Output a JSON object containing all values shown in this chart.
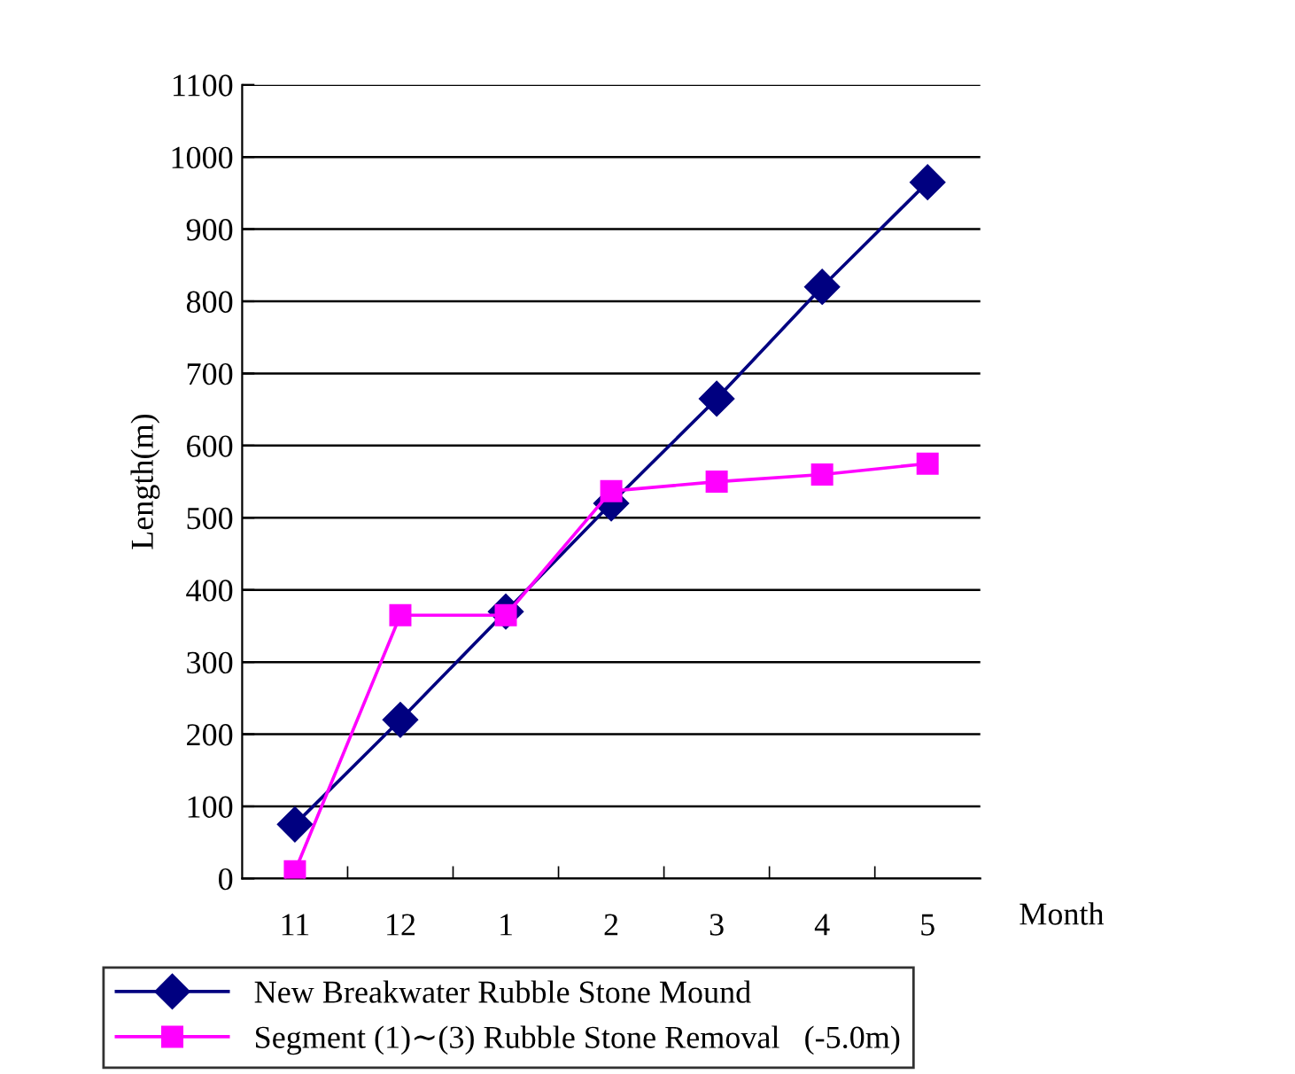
{
  "chart_data": {
    "type": "line",
    "xlabel": "Month",
    "ylabel": "Length(m)",
    "categories": [
      "11",
      "12",
      "1",
      "2",
      "3",
      "4",
      "5"
    ],
    "series": [
      {
        "name": "New Breakwater Rubble Stone Mound",
        "color": "#000080",
        "marker": "diamond",
        "values": [
          75,
          220,
          370,
          520,
          665,
          820,
          965
        ]
      },
      {
        "name": "Segment (1)∼(3) Rubble Stone Removal   (-5.0m)",
        "color": "#ff00ff",
        "marker": "square",
        "values": [
          10,
          365,
          365,
          537,
          550,
          560,
          575
        ]
      }
    ],
    "ylim": [
      0,
      1100
    ],
    "yticks": [
      0,
      100,
      200,
      300,
      400,
      500,
      600,
      700,
      800,
      900,
      1000,
      1100
    ],
    "grid": "y",
    "legend": "bottom",
    "line_style": "solid"
  }
}
